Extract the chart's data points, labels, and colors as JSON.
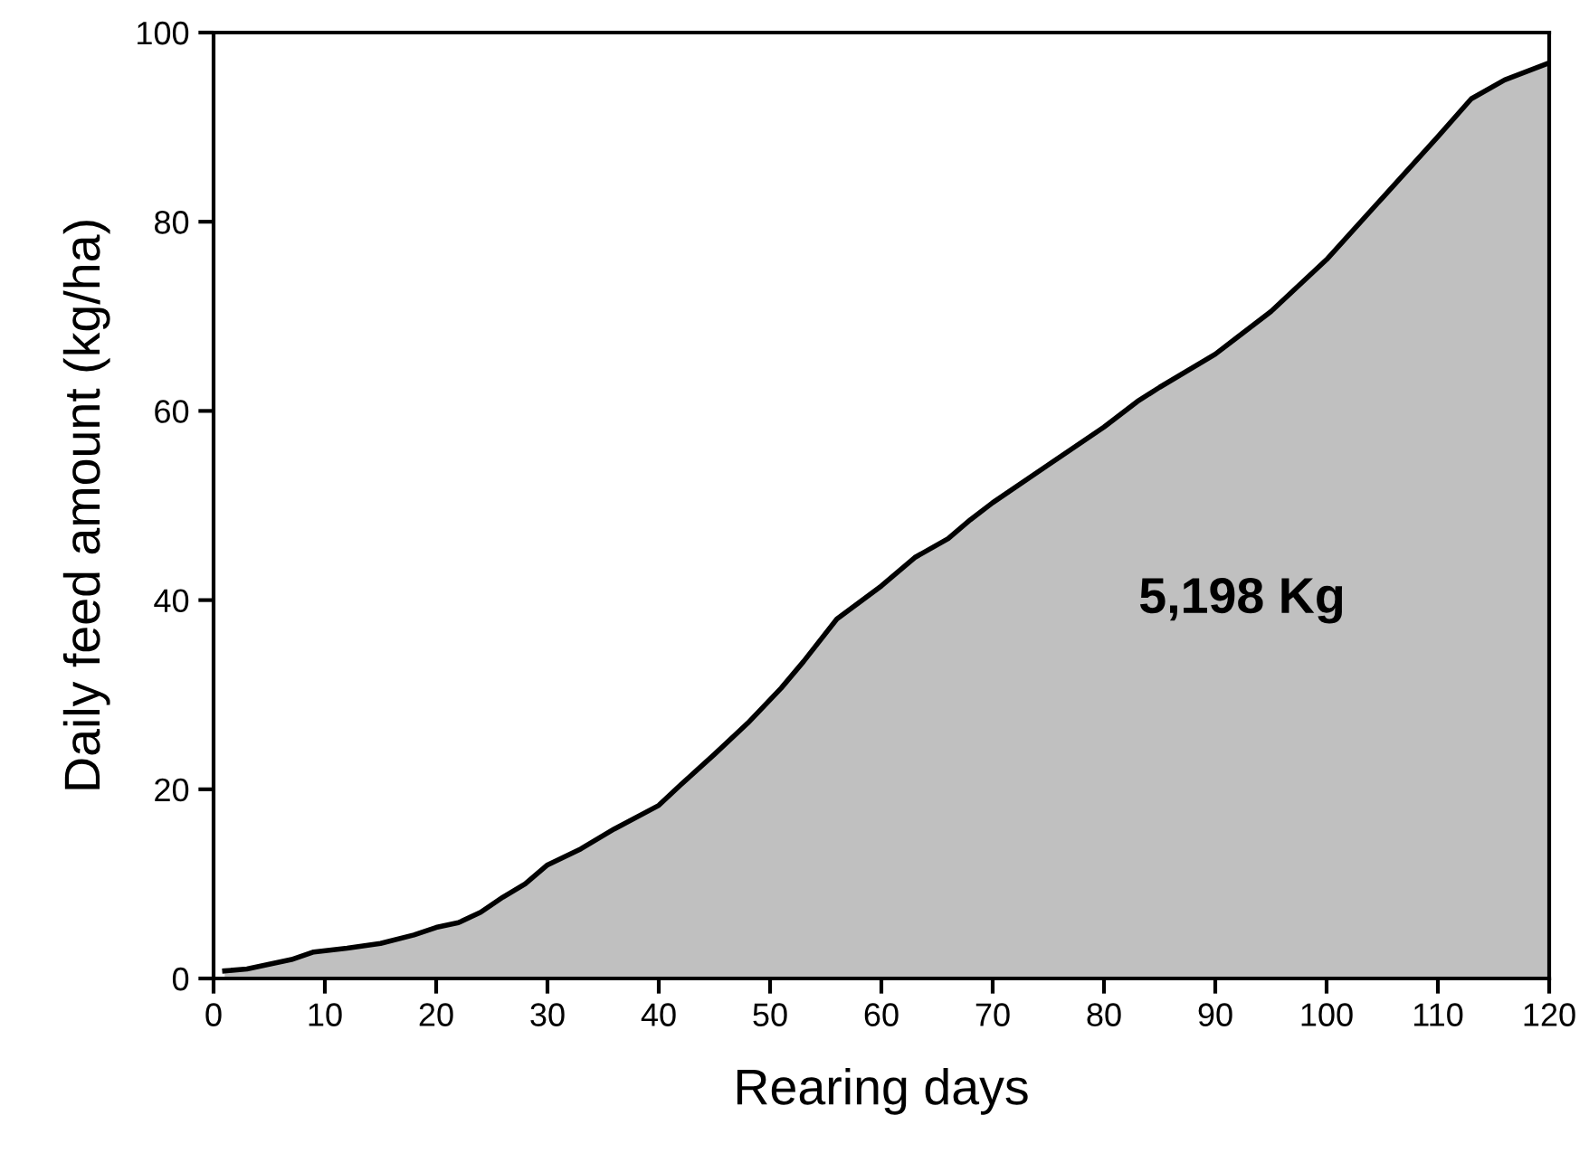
{
  "chart_data": {
    "type": "area",
    "xlabel": "Rearing days",
    "ylabel": "Daily feed amount (kg/ha)",
    "x": [
      1,
      3,
      5,
      7,
      9,
      12,
      15,
      18,
      20,
      22,
      24,
      26,
      28,
      30,
      33,
      36,
      40,
      42,
      45,
      48,
      51,
      53,
      56,
      60,
      63,
      66,
      68,
      70,
      75,
      80,
      83,
      85,
      90,
      92,
      95,
      100,
      105,
      110,
      113,
      116,
      120
    ],
    "series": [
      {
        "color": "#c0c0c0",
        "values": [
          0.8,
          1,
          1.5,
          2,
          2.8,
          3.2,
          3.7,
          4.6,
          5.4,
          5.9,
          7,
          8.6,
          10,
          12,
          13.7,
          15.8,
          18.3,
          20.5,
          23.7,
          27,
          30.7,
          33.5,
          38,
          41.5,
          44.5,
          46.5,
          48.5,
          50.3,
          54.3,
          58.3,
          61,
          62.5,
          66,
          67.8,
          70.5,
          76,
          82.5,
          89,
          93,
          95,
          96.8
        ]
      }
    ],
    "xlim": [
      0,
      120
    ],
    "xticks": [
      0,
      10,
      20,
      30,
      40,
      50,
      60,
      70,
      80,
      90,
      100,
      110,
      120
    ],
    "ylim": [
      0,
      100
    ],
    "yticks": [
      0,
      20,
      40,
      60,
      80,
      100
    ],
    "annotations": [
      "5,198 Kg"
    ],
    "grid": false,
    "legend": false
  }
}
